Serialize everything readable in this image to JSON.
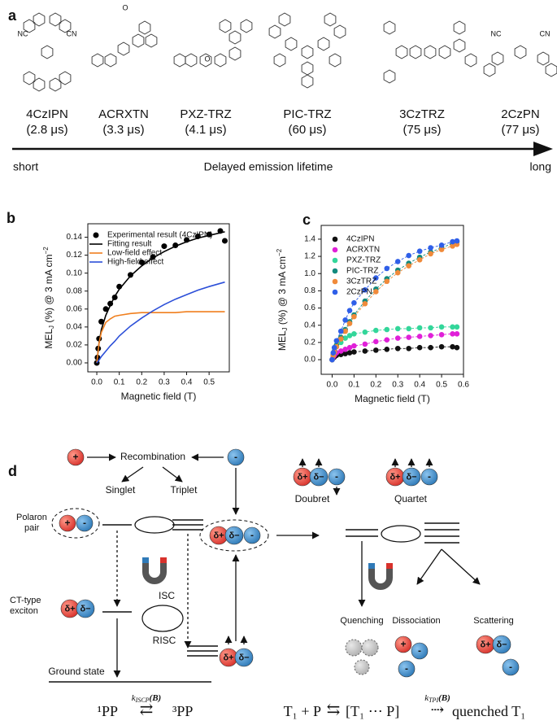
{
  "figure": {
    "panel_a": {
      "label": "a",
      "molecules": [
        {
          "name": "4CzIPN",
          "lifetime": "(2.8 μs)",
          "atoms": [
            "NC",
            "CN"
          ]
        },
        {
          "name": "ACRXTN",
          "lifetime": "(3.3 μs)",
          "atoms": [
            "O"
          ]
        },
        {
          "name": "PXZ-TRZ",
          "lifetime": "(4.1 μs)",
          "atoms": [
            "O"
          ]
        },
        {
          "name": "PIC-TRZ",
          "lifetime": "(60 μs)"
        },
        {
          "name": "3CzTRZ",
          "lifetime": "(75 μs)"
        },
        {
          "name": "2CzPN",
          "lifetime": "(77 μs)",
          "atoms": [
            "NC",
            "CN"
          ]
        }
      ],
      "axis_start": "short",
      "axis_title": "Delayed emission lifetime",
      "axis_end": "long"
    },
    "panel_d": {
      "label": "d",
      "plus": "+",
      "minus": "-",
      "delta_plus": "δ+",
      "delta_minus": "δ−",
      "recombination": "Recombination",
      "singlet": "Singlet",
      "triplet": "Triplet",
      "polaron_pair": [
        "Polaron",
        "pair"
      ],
      "ct_exciton": [
        "CT-type",
        "exciton"
      ],
      "isc": "ISC",
      "risc": "RISC",
      "ground_state": "Ground state",
      "doublet": "Doubret",
      "quartet": "Quartet",
      "quenching": "Quenching",
      "dissociation": "Dissociation",
      "scattering": "Scattering",
      "equation_1": {
        "left": "¹PP",
        "rate": "k",
        "rate_sub": "ISCP",
        "rate_arg": "(B)",
        "arrow": "⇄",
        "right": "³PP"
      },
      "equation_2": {
        "lhs": "T₁ + P",
        "arrow1": "⇆",
        "mid": "[T₁ ⋯ P]",
        "rate": "k",
        "rate_sub": "TPI",
        "rate_arg": "(B)",
        "arrow2": "⇢",
        "rhs": "quenched T₁"
      }
    }
  },
  "chart_data": [
    {
      "type": "line",
      "label": "b",
      "xlabel": "Magnetic field (T)",
      "ylabel": {
        "text": "MEL",
        "sub": "J",
        "rest": " (%) @ 3 mA cm",
        "sup": "−2"
      },
      "xlim": [
        -0.04,
        0.59
      ],
      "ylim": [
        -0.01,
        0.155
      ],
      "xticks": [
        {
          "value": 0,
          "label": "0.0"
        },
        {
          "value": 0.1,
          "label": "0.1"
        },
        {
          "value": 0.2,
          "label": "0.2"
        },
        {
          "value": 0.3,
          "label": "0.3"
        },
        {
          "value": 0.4,
          "label": "0.4"
        },
        {
          "value": 0.5,
          "label": "0.5"
        }
      ],
      "yticks": [
        {
          "value": 0,
          "label": "0.00"
        },
        {
          "value": 0.02,
          "label": "0.02"
        },
        {
          "value": 0.04,
          "label": "0.04"
        },
        {
          "value": 0.06,
          "label": "0.06"
        },
        {
          "value": 0.08,
          "label": "0.08"
        },
        {
          "value": 0.1,
          "label": "0.10"
        },
        {
          "value": 0.12,
          "label": "0.12"
        },
        {
          "value": 0.14,
          "label": "0.14"
        }
      ],
      "grid": false,
      "legend": "upper left",
      "series": [
        {
          "name": "Experimental result (4CzIPN)",
          "color": "#000000",
          "marker": true,
          "line": "none",
          "x": [
            0,
            0.003,
            0.006,
            0.01,
            0.02,
            0.04,
            0.06,
            0.08,
            0.1,
            0.15,
            0.2,
            0.25,
            0.3,
            0.35,
            0.4,
            0.45,
            0.5,
            0.55,
            0.57
          ],
          "values": [
            0,
            0.006,
            0.016,
            0.027,
            0.046,
            0.06,
            0.066,
            0.073,
            0.085,
            0.098,
            0.112,
            0.118,
            0.13,
            0.131,
            0.137,
            0.141,
            0.143,
            0.147,
            0.136
          ]
        },
        {
          "name": "Fitting result",
          "color": "#000000",
          "marker": false,
          "line": "solid",
          "x": [
            0,
            0.01,
            0.02,
            0.04,
            0.06,
            0.08,
            0.1,
            0.15,
            0.2,
            0.25,
            0.3,
            0.35,
            0.4,
            0.45,
            0.5,
            0.57
          ],
          "values": [
            0,
            0.022,
            0.037,
            0.053,
            0.064,
            0.074,
            0.082,
            0.097,
            0.108,
            0.117,
            0.124,
            0.13,
            0.135,
            0.139,
            0.142,
            0.146
          ]
        },
        {
          "name": "Low-field effect",
          "color": "#f07f1e",
          "marker": false,
          "line": "solid",
          "x": [
            0,
            0.01,
            0.02,
            0.04,
            0.06,
            0.08,
            0.1,
            0.15,
            0.2,
            0.25,
            0.3,
            0.35,
            0.4,
            0.45,
            0.5,
            0.57
          ],
          "values": [
            0,
            0.022,
            0.034,
            0.045,
            0.049,
            0.052,
            0.053,
            0.055,
            0.056,
            0.056,
            0.056,
            0.056,
            0.057,
            0.057,
            0.057,
            0.057
          ]
        },
        {
          "name": "High-field effect",
          "color": "#2c4fd8",
          "marker": false,
          "line": "solid",
          "x": [
            0,
            0.01,
            0.02,
            0.04,
            0.06,
            0.08,
            0.1,
            0.15,
            0.2,
            0.25,
            0.3,
            0.35,
            0.4,
            0.45,
            0.5,
            0.57
          ],
          "values": [
            0,
            0.003,
            0.007,
            0.013,
            0.019,
            0.024,
            0.03,
            0.041,
            0.05,
            0.058,
            0.065,
            0.071,
            0.076,
            0.081,
            0.085,
            0.09
          ]
        }
      ]
    },
    {
      "type": "line",
      "label": "c",
      "xlabel": "Magnetic field (T)",
      "ylabel": {
        "text": "MEL",
        "sub": "J",
        "rest": " (%) @ 3 mA cm",
        "sup": "−2"
      },
      "xlim": [
        -0.05,
        0.6
      ],
      "ylim": [
        -0.17,
        1.56
      ],
      "xticks": [
        {
          "value": 0,
          "label": "0.0"
        },
        {
          "value": 0.1,
          "label": "0.1"
        },
        {
          "value": 0.2,
          "label": "0.2"
        },
        {
          "value": 0.3,
          "label": "0.3"
        },
        {
          "value": 0.4,
          "label": "0.4"
        },
        {
          "value": 0.5,
          "label": "0.5"
        },
        {
          "value": 0.6,
          "label": "0.6"
        }
      ],
      "yticks": [
        {
          "value": 0,
          "label": "0.0"
        },
        {
          "value": 0.2,
          "label": "0.2"
        },
        {
          "value": 0.4,
          "label": "0.4"
        },
        {
          "value": 0.6,
          "label": "0.6"
        },
        {
          "value": 0.8,
          "label": "0.8"
        },
        {
          "value": 1,
          "label": "1.0"
        },
        {
          "value": 1.2,
          "label": "1.2"
        },
        {
          "value": 1.4,
          "label": "1.4"
        }
      ],
      "grid": false,
      "legend": "upper left",
      "series": [
        {
          "name": "4CzIPN",
          "color": "#111111",
          "marker": true,
          "line": "dashed",
          "x": [
            0,
            0.005,
            0.01,
            0.02,
            0.04,
            0.06,
            0.08,
            0.1,
            0.15,
            0.2,
            0.25,
            0.3,
            0.35,
            0.4,
            0.45,
            0.5,
            0.55,
            0.57
          ],
          "values": [
            0,
            0.02,
            0.03,
            0.05,
            0.06,
            0.07,
            0.08,
            0.09,
            0.1,
            0.11,
            0.12,
            0.13,
            0.13,
            0.14,
            0.14,
            0.15,
            0.15,
            0.14
          ]
        },
        {
          "name": "ACRXTN",
          "color": "#e020d8",
          "marker": true,
          "line": "dashed",
          "x": [
            0,
            0.005,
            0.01,
            0.02,
            0.04,
            0.06,
            0.08,
            0.1,
            0.15,
            0.2,
            0.25,
            0.3,
            0.35,
            0.4,
            0.45,
            0.5,
            0.55,
            0.57
          ],
          "values": [
            0,
            0.03,
            0.05,
            0.08,
            0.1,
            0.12,
            0.14,
            0.16,
            0.18,
            0.21,
            0.23,
            0.25,
            0.26,
            0.27,
            0.28,
            0.29,
            0.3,
            0.3
          ]
        },
        {
          "name": "PXZ-TRZ",
          "color": "#33d69a",
          "marker": true,
          "line": "dashed",
          "x": [
            0,
            0.005,
            0.01,
            0.02,
            0.04,
            0.06,
            0.08,
            0.1,
            0.15,
            0.2,
            0.25,
            0.3,
            0.35,
            0.4,
            0.45,
            0.5,
            0.55,
            0.57
          ],
          "values": [
            0,
            0.05,
            0.09,
            0.15,
            0.2,
            0.25,
            0.28,
            0.3,
            0.32,
            0.34,
            0.35,
            0.36,
            0.36,
            0.37,
            0.37,
            0.38,
            0.38,
            0.38
          ]
        },
        {
          "name": "PIC-TRZ",
          "color": "#128a7e",
          "marker": true,
          "line": "dashed",
          "x": [
            0,
            0.005,
            0.01,
            0.02,
            0.04,
            0.06,
            0.08,
            0.1,
            0.15,
            0.2,
            0.25,
            0.3,
            0.35,
            0.4,
            0.45,
            0.5,
            0.55,
            0.57
          ],
          "values": [
            0,
            0.06,
            0.1,
            0.17,
            0.26,
            0.35,
            0.44,
            0.52,
            0.68,
            0.82,
            0.94,
            1.04,
            1.12,
            1.19,
            1.25,
            1.3,
            1.35,
            1.37
          ]
        },
        {
          "name": "3CzTRZ",
          "color": "#f08a3a",
          "marker": true,
          "line": "dashed",
          "x": [
            0,
            0.005,
            0.01,
            0.02,
            0.04,
            0.06,
            0.08,
            0.1,
            0.15,
            0.2,
            0.25,
            0.3,
            0.35,
            0.4,
            0.45,
            0.5,
            0.55,
            0.57
          ],
          "values": [
            0,
            0.05,
            0.09,
            0.15,
            0.24,
            0.33,
            0.42,
            0.5,
            0.65,
            0.79,
            0.91,
            1.01,
            1.09,
            1.16,
            1.23,
            1.28,
            1.32,
            1.34
          ]
        },
        {
          "name": "2CzPN",
          "color": "#2f5fe8",
          "marker": true,
          "line": "dashed",
          "x": [
            0,
            0.005,
            0.01,
            0.02,
            0.04,
            0.06,
            0.08,
            0.1,
            0.15,
            0.2,
            0.25,
            0.3,
            0.35,
            0.4,
            0.45,
            0.5,
            0.55,
            0.57
          ],
          "values": [
            0,
            0.08,
            0.14,
            0.22,
            0.33,
            0.46,
            0.57,
            0.66,
            0.81,
            0.95,
            1.06,
            1.14,
            1.21,
            1.26,
            1.3,
            1.33,
            1.37,
            1.38
          ]
        }
      ]
    }
  ]
}
